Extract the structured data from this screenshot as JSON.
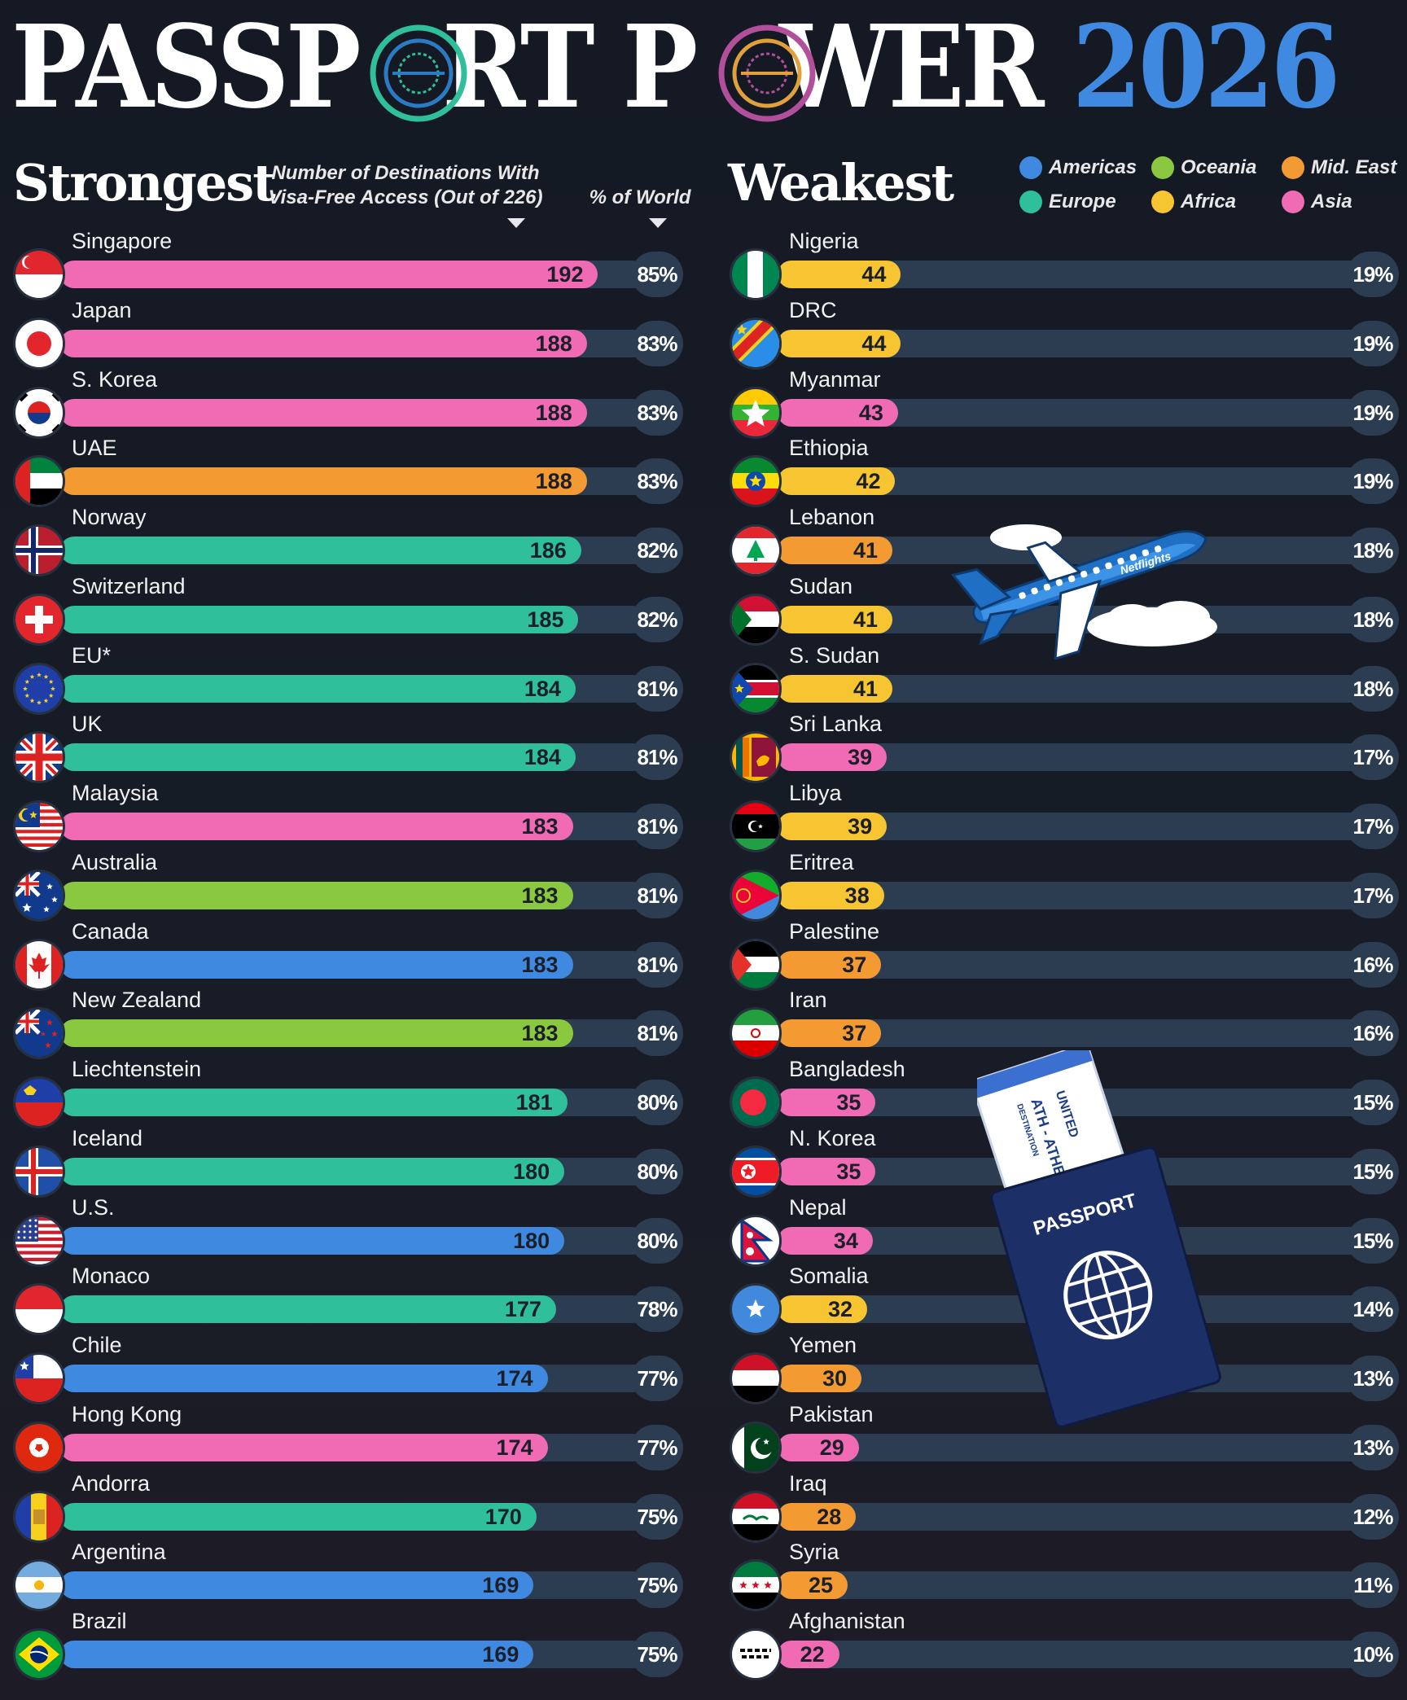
{
  "header": {
    "title_words": [
      "PASSP",
      "RT P",
      "WER"
    ],
    "title_year": "2026"
  },
  "strongest": {
    "heading": "Strongest",
    "col_destinations": "Number of Destinations With Visa-Free Access (Out of 226)",
    "col_percent": "% of World"
  },
  "weakest": {
    "heading": "Weakest"
  },
  "legend": [
    {
      "label": "Americas",
      "color": "#3f8ae0"
    },
    {
      "label": "Oceania",
      "color": "#8ac93f"
    },
    {
      "label": "Mid. East",
      "color": "#f39a33"
    },
    {
      "label": "Europe",
      "color": "#2fbf9a"
    },
    {
      "label": "Africa",
      "color": "#f6c531"
    },
    {
      "label": "Asia",
      "color": "#f06ab4"
    }
  ],
  "illustrations": {
    "airline_label": "Netflights",
    "passport_label": "PASSPORT",
    "ticket_text": [
      "UNITED",
      "ATH - ATHENS, G",
      "DESTINATION"
    ]
  },
  "chart_data": [
    {
      "type": "bar",
      "panel": "Strongest",
      "x_max": 226,
      "categories": [
        "Singapore",
        "Japan",
        "S. Korea",
        "UAE",
        "Norway",
        "Switzerland",
        "EU*",
        "UK",
        "Malaysia",
        "Australia",
        "Canada",
        "New Zealand",
        "Liechtenstein",
        "Iceland",
        "U.S.",
        "Monaco",
        "Chile",
        "Hong Kong",
        "Andorra",
        "Argentina",
        "Brazil"
      ],
      "values": [
        192,
        188,
        188,
        188,
        186,
        185,
        184,
        184,
        183,
        183,
        183,
        183,
        181,
        180,
        180,
        177,
        174,
        174,
        170,
        169,
        169
      ],
      "percent_labels": [
        "85%",
        "83%",
        "83%",
        "83%",
        "82%",
        "82%",
        "81%",
        "81%",
        "81%",
        "81%",
        "81%",
        "81%",
        "80%",
        "80%",
        "80%",
        "78%",
        "77%",
        "77%",
        "75%",
        "75%",
        "75%"
      ],
      "regions": [
        "Asia",
        "Asia",
        "Asia",
        "Mid. East",
        "Europe",
        "Europe",
        "Europe",
        "Europe",
        "Asia",
        "Oceania",
        "Americas",
        "Oceania",
        "Europe",
        "Europe",
        "Americas",
        "Europe",
        "Americas",
        "Asia",
        "Europe",
        "Americas",
        "Americas"
      ],
      "flags": [
        "singapore",
        "japan",
        "south-korea",
        "uae",
        "norway",
        "switzerland",
        "eu",
        "uk",
        "malaysia",
        "australia",
        "canada",
        "new-zealand",
        "liechtenstein",
        "iceland",
        "usa",
        "monaco",
        "chile",
        "hong-kong",
        "andorra",
        "argentina",
        "brazil"
      ]
    },
    {
      "type": "bar",
      "panel": "Weakest",
      "x_max": 226,
      "categories": [
        "Nigeria",
        "DRC",
        "Myanmar",
        "Ethiopia",
        "Lebanon",
        "Sudan",
        "S. Sudan",
        "Sri Lanka",
        "Libya",
        "Eritrea",
        "Palestine",
        "Iran",
        "Bangladesh",
        "N. Korea",
        "Nepal",
        "Somalia",
        "Yemen",
        "Pakistan",
        "Iraq",
        "Syria",
        "Afghanistan"
      ],
      "values": [
        44,
        44,
        43,
        42,
        41,
        41,
        41,
        39,
        39,
        38,
        37,
        37,
        35,
        35,
        34,
        32,
        30,
        29,
        28,
        25,
        22
      ],
      "percent_labels": [
        "19%",
        "19%",
        "19%",
        "19%",
        "18%",
        "18%",
        "18%",
        "17%",
        "17%",
        "17%",
        "16%",
        "16%",
        "15%",
        "15%",
        "15%",
        "14%",
        "13%",
        "13%",
        "12%",
        "11%",
        "10%"
      ],
      "regions": [
        "Africa",
        "Africa",
        "Asia",
        "Africa",
        "Mid. East",
        "Africa",
        "Africa",
        "Asia",
        "Africa",
        "Africa",
        "Mid. East",
        "Mid. East",
        "Asia",
        "Asia",
        "Asia",
        "Africa",
        "Mid. East",
        "Asia",
        "Mid. East",
        "Mid. East",
        "Asia"
      ],
      "flags": [
        "nigeria",
        "drc",
        "myanmar",
        "ethiopia",
        "lebanon",
        "sudan",
        "south-sudan",
        "sri-lanka",
        "libya",
        "eritrea",
        "palestine",
        "iran",
        "bangladesh",
        "north-korea",
        "nepal",
        "somalia",
        "yemen",
        "pakistan",
        "iraq",
        "syria",
        "afghanistan"
      ]
    }
  ]
}
